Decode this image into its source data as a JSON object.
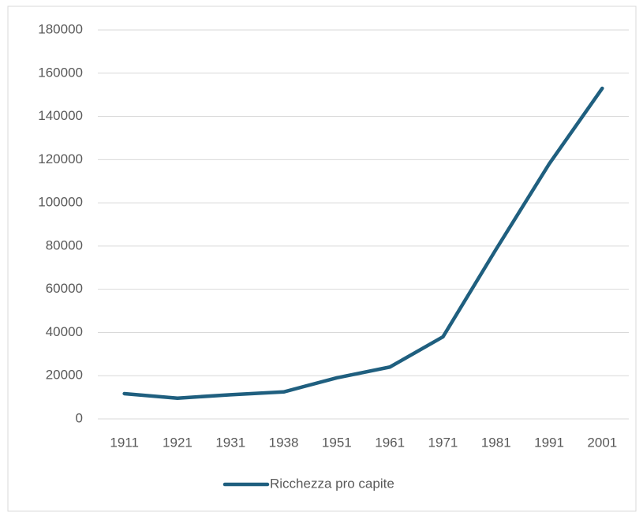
{
  "chart_data": {
    "type": "line",
    "categories": [
      "1911",
      "1921",
      "1931",
      "1938",
      "1951",
      "1961",
      "1971",
      "1981",
      "1991",
      "2001"
    ],
    "series": [
      {
        "name": "Ricchezza pro capite",
        "color": "#1f5f7f",
        "values": [
          11700,
          9600,
          11200,
          12500,
          19000,
          24000,
          38000,
          78500,
          118000,
          153000
        ]
      }
    ],
    "ylim": [
      0,
      180000
    ],
    "yticks": [
      0,
      20000,
      40000,
      60000,
      80000,
      100000,
      120000,
      140000,
      160000,
      180000
    ],
    "grid": true,
    "legend": "bottom"
  }
}
